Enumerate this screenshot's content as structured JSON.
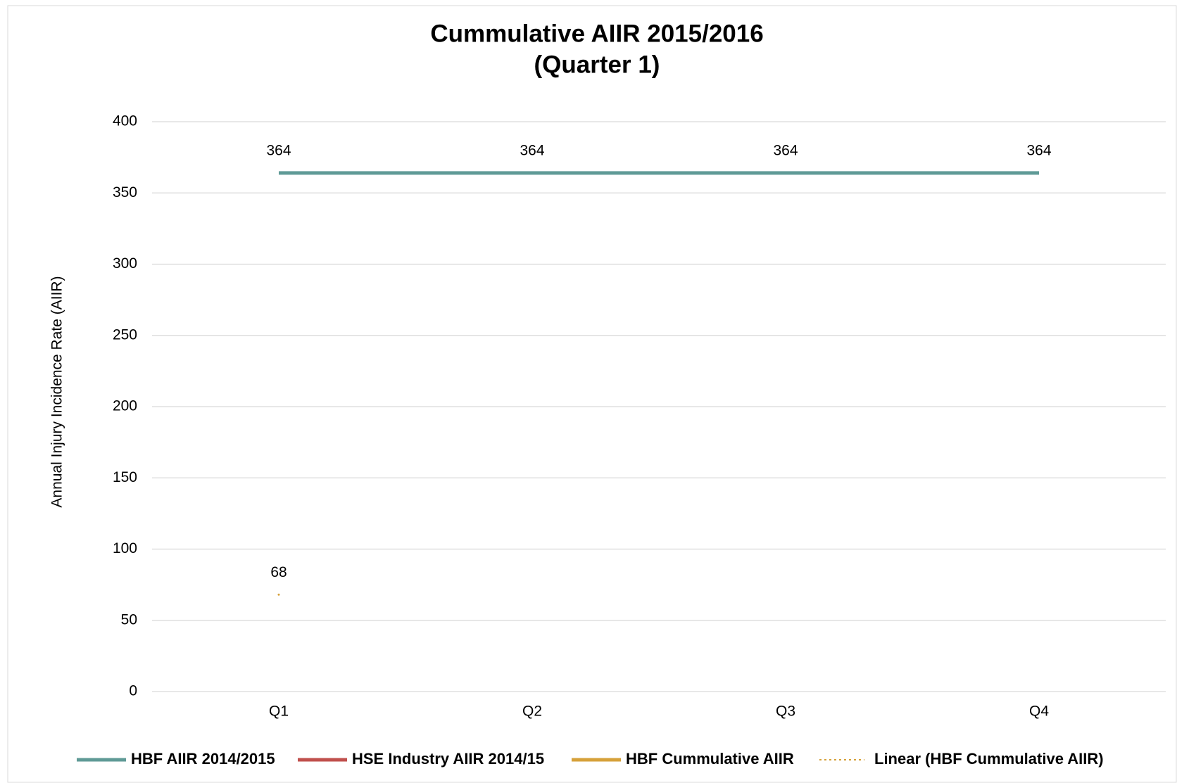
{
  "chart_data": {
    "type": "line",
    "title": [
      "Cummulative AIIR 2015/2016",
      "(Quarter 1)"
    ],
    "ylabel": "Annual Injury Incidence Rate (AIIR)",
    "categories": [
      "Q1",
      "Q2",
      "Q3",
      "Q4"
    ],
    "ylim": [
      0,
      400
    ],
    "yticks": [
      0,
      50,
      100,
      150,
      200,
      250,
      300,
      350,
      400
    ],
    "grid": true,
    "legend": "bottom",
    "series": [
      {
        "name": "HBF AIIR 2014/2015",
        "color": "#5f9a96",
        "values": [
          364,
          364,
          364,
          364
        ],
        "data_labels": true
      },
      {
        "name": "HSE Industry AIIR 2014/15",
        "color": "#c0504d",
        "values": [
          null,
          null,
          null,
          null
        ],
        "data_labels": false
      },
      {
        "name": "HBF Cummulative AIIR",
        "color": "#d6a13a",
        "values": [
          68,
          null,
          null,
          null
        ],
        "data_labels": true
      },
      {
        "name": "Linear (HBF Cummulative AIIR)",
        "color": "#d6a13a",
        "dash": "dotted",
        "values": [
          null,
          null,
          null,
          null
        ],
        "data_labels": false
      }
    ]
  }
}
